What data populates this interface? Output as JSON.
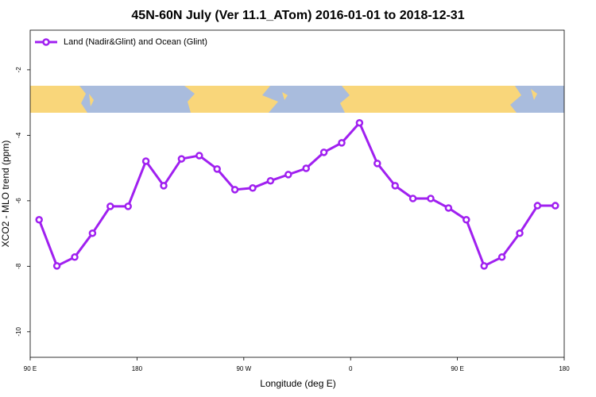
{
  "chart_data": {
    "type": "line",
    "title": "45N-60N July (Ver 11.1_ATom)   2016-01-01 to 2018-12-31",
    "x_label": "Longitude (deg E)",
    "y_label": "XCO2 - MLO trend (ppm)",
    "x": [
      97.5,
      112.5,
      127.5,
      142.5,
      157.5,
      172.5,
      187.5,
      202.5,
      217.5,
      232.5,
      247.5,
      262.5,
      277.5,
      292.5,
      307.5,
      322.5,
      337.5,
      352.5,
      367.5,
      382.5,
      397.5,
      412.5,
      427.5,
      442.5,
      457.5,
      472.5,
      487.5,
      502.5,
      517.5,
      532.5
    ],
    "series": [
      {
        "name": "Land (Nadir&Glint) and Ocean (Glint)",
        "color": "#a020f0",
        "values": [
          -6.58,
          -7.99,
          -7.72,
          -6.99,
          -6.17,
          -6.17,
          -4.79,
          -5.54,
          -4.72,
          -4.62,
          -5.03,
          -5.66,
          -5.61,
          -5.39,
          -5.2,
          -5.01,
          -4.52,
          -4.23,
          -3.62,
          -4.86,
          -5.54,
          -5.93,
          -5.93,
          -6.22,
          -6.58,
          -7.99,
          -7.72,
          -6.99,
          -6.15,
          -6.15
        ]
      }
    ],
    "xlim": [
      90,
      540
    ],
    "xticks": [
      {
        "value": 90,
        "label": "90 E"
      },
      180,
      {
        "value": 270,
        "label": "90 W"
      },
      {
        "value": 360,
        "label": "0"
      },
      {
        "value": 450,
        "label": "90 E"
      },
      {
        "value": 540,
        "label": "180"
      }
    ],
    "ylim": [
      -10.78,
      -0.79
    ],
    "yticks": [
      -2,
      -4,
      -6,
      -8,
      -10
    ],
    "legend": "top-left"
  }
}
